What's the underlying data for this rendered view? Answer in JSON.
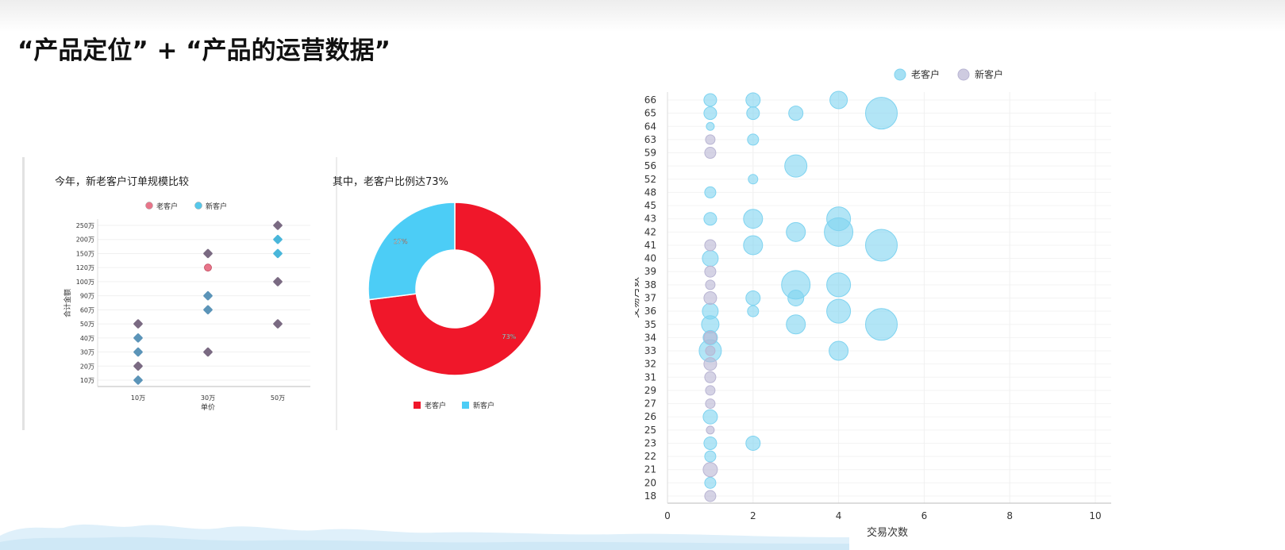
{
  "page": {
    "title": "“产品定位” + “产品的运营数据”"
  },
  "chart_data": [
    {
      "type": "scatter",
      "title": "今年，新老客户订单规模比较",
      "xlabel": "单价",
      "ylabel": "合计金额",
      "categories": [
        "10万",
        "30万",
        "50万"
      ],
      "y_categories": [
        "10万",
        "20万",
        "30万",
        "40万",
        "50万",
        "60万",
        "90万",
        "100万",
        "120万",
        "150万",
        "200万",
        "250万"
      ],
      "legend_position": "top",
      "series": [
        {
          "name": "老客户",
          "color": "#e8758a",
          "points": [
            {
              "x": "10万",
              "y": "50万"
            },
            {
              "x": "10万",
              "y": "20万"
            },
            {
              "x": "30万",
              "y": "150万"
            },
            {
              "x": "30万",
              "y": "120万"
            },
            {
              "x": "30万",
              "y": "30万"
            },
            {
              "x": "50万",
              "y": "250万"
            },
            {
              "x": "50万",
              "y": "100万"
            },
            {
              "x": "50万",
              "y": "50万"
            }
          ]
        },
        {
          "name": "新客户",
          "color": "#56c8ea",
          "points": [
            {
              "x": "10万",
              "y": "40万"
            },
            {
              "x": "10万",
              "y": "30万"
            },
            {
              "x": "10万",
              "y": "10万"
            },
            {
              "x": "30万",
              "y": "90万"
            },
            {
              "x": "30万",
              "y": "60万"
            },
            {
              "x": "50万",
              "y": "200万"
            },
            {
              "x": "50万",
              "y": "150万"
            }
          ]
        }
      ]
    },
    {
      "type": "pie",
      "title": "其中，老客户比例达73%",
      "legend_position": "bottom",
      "slices": [
        {
          "name": "老客户",
          "value": 73,
          "label": "73%",
          "color": "#f0172a"
        },
        {
          "name": "新客户",
          "value": 27,
          "label": "27%",
          "color": "#4ccdf6"
        }
      ]
    },
    {
      "type": "scatter",
      "bubble": true,
      "xlabel": "交易次数",
      "ylabel": "交易月数",
      "xlim": [
        0,
        10
      ],
      "x_ticks": [
        0,
        2,
        4,
        6,
        8,
        10
      ],
      "y_categories": [
        "18",
        "20",
        "21",
        "22",
        "23",
        "25",
        "26",
        "27",
        "29",
        "31",
        "32",
        "33",
        "34",
        "35",
        "36",
        "37",
        "38",
        "39",
        "40",
        "41",
        "42",
        "43",
        "45",
        "48",
        "52",
        "56",
        "59",
        "63",
        "64",
        "65",
        "66"
      ],
      "legend_position": "top",
      "series": [
        {
          "name": "老客户",
          "color": "#7fd3f0",
          "points": [
            {
              "x": 1,
              "y": "66",
              "s": 8
            },
            {
              "x": 2,
              "y": "66",
              "s": 9
            },
            {
              "x": 4,
              "y": "66",
              "s": 11
            },
            {
              "x": 1,
              "y": "65",
              "s": 8
            },
            {
              "x": 2,
              "y": "65",
              "s": 8
            },
            {
              "x": 3,
              "y": "65",
              "s": 9
            },
            {
              "x": 5,
              "y": "65",
              "s": 20
            },
            {
              "x": 1,
              "y": "64",
              "s": 5
            },
            {
              "x": 2,
              "y": "63",
              "s": 7
            },
            {
              "x": 3,
              "y": "56",
              "s": 14
            },
            {
              "x": 2,
              "y": "52",
              "s": 6
            },
            {
              "x": 1,
              "y": "48",
              "s": 7
            },
            {
              "x": 1,
              "y": "43",
              "s": 8
            },
            {
              "x": 2,
              "y": "43",
              "s": 12
            },
            {
              "x": 4,
              "y": "43",
              "s": 15
            },
            {
              "x": 3,
              "y": "42",
              "s": 12
            },
            {
              "x": 4,
              "y": "42",
              "s": 18
            },
            {
              "x": 2,
              "y": "41",
              "s": 12
            },
            {
              "x": 5,
              "y": "41",
              "s": 20
            },
            {
              "x": 1,
              "y": "40",
              "s": 10
            },
            {
              "x": 3,
              "y": "38",
              "s": 18
            },
            {
              "x": 4,
              "y": "38",
              "s": 15
            },
            {
              "x": 2,
              "y": "37",
              "s": 9
            },
            {
              "x": 3,
              "y": "37",
              "s": 10
            },
            {
              "x": 1,
              "y": "36",
              "s": 10
            },
            {
              "x": 2,
              "y": "36",
              "s": 7
            },
            {
              "x": 4,
              "y": "36",
              "s": 15
            },
            {
              "x": 1,
              "y": "35",
              "s": 11
            },
            {
              "x": 3,
              "y": "35",
              "s": 12
            },
            {
              "x": 5,
              "y": "35",
              "s": 20
            },
            {
              "x": 1,
              "y": "34",
              "s": 9
            },
            {
              "x": 1,
              "y": "33",
              "s": 14
            },
            {
              "x": 4,
              "y": "33",
              "s": 12
            },
            {
              "x": 1,
              "y": "26",
              "s": 9
            },
            {
              "x": 1,
              "y": "23",
              "s": 8
            },
            {
              "x": 2,
              "y": "23",
              "s": 9
            },
            {
              "x": 1,
              "y": "22",
              "s": 7
            },
            {
              "x": 1,
              "y": "20",
              "s": 7
            }
          ]
        },
        {
          "name": "新客户",
          "color": "#b9b5d3",
          "points": [
            {
              "x": 1,
              "y": "63",
              "s": 6
            },
            {
              "x": 1,
              "y": "59",
              "s": 7
            },
            {
              "x": 1,
              "y": "41",
              "s": 7
            },
            {
              "x": 1,
              "y": "39",
              "s": 7
            },
            {
              "x": 1,
              "y": "38",
              "s": 6
            },
            {
              "x": 1,
              "y": "37",
              "s": 8
            },
            {
              "x": 1,
              "y": "34",
              "s": 8
            },
            {
              "x": 1,
              "y": "33",
              "s": 6
            },
            {
              "x": 1,
              "y": "32",
              "s": 8
            },
            {
              "x": 1,
              "y": "31",
              "s": 7
            },
            {
              "x": 1,
              "y": "29",
              "s": 6
            },
            {
              "x": 1,
              "y": "27",
              "s": 6
            },
            {
              "x": 1,
              "y": "25",
              "s": 5
            },
            {
              "x": 1,
              "y": "21",
              "s": 9
            },
            {
              "x": 1,
              "y": "18",
              "s": 7
            }
          ]
        }
      ]
    }
  ]
}
